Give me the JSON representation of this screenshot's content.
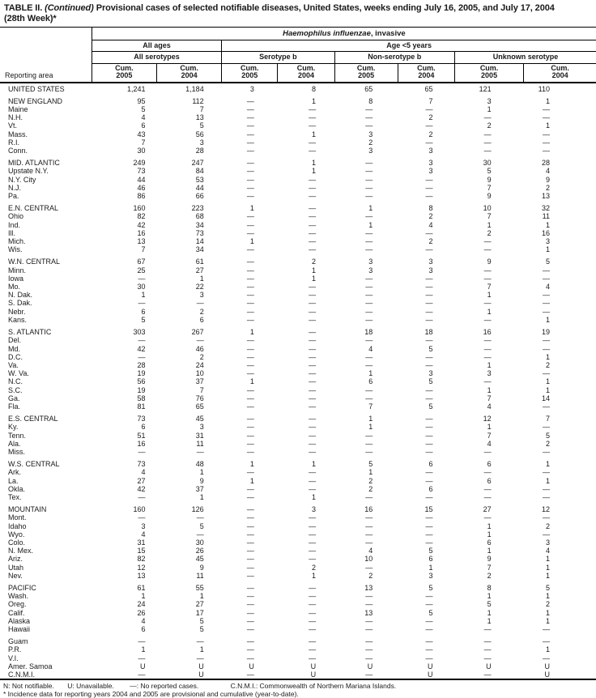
{
  "title": {
    "part1": "TABLE II. ",
    "part2": "(Continued) ",
    "part3": "Provisional cases of selected notifiable diseases, United States, weeks ending July 16, 2005, and July 17, 2004",
    "part4": "(28th Week)*"
  },
  "header": {
    "reporting_area": "Reporting area",
    "disease_italic": "Haemophilus influenzae",
    "disease_rest": ", invasive",
    "all_ages": "All ages",
    "age_lt5": "Age <5 years",
    "all_serotypes": "All serotypes",
    "serotype_b": "Serotype b",
    "non_serotype_b": "Non-serotype b",
    "unknown_serotype": "Unknown serotype",
    "cum": "Cum.",
    "y2005": "2005",
    "y2004": "2004"
  },
  "table": {
    "rows": [
      {
        "area": "UNITED STATES",
        "gap": false,
        "values": [
          "1,241",
          "1,184",
          "3",
          "8",
          "65",
          "65",
          "121",
          "110"
        ]
      },
      {
        "area": "NEW ENGLAND",
        "gap": true,
        "values": [
          "95",
          "112",
          "—",
          "1",
          "8",
          "7",
          "3",
          "1"
        ]
      },
      {
        "area": "Maine",
        "gap": false,
        "values": [
          "5",
          "7",
          "—",
          "—",
          "—",
          "—",
          "1",
          "—"
        ]
      },
      {
        "area": "N.H.",
        "gap": false,
        "values": [
          "4",
          "13",
          "—",
          "—",
          "—",
          "2",
          "—",
          "—"
        ]
      },
      {
        "area": "Vt.",
        "gap": false,
        "values": [
          "6",
          "5",
          "—",
          "—",
          "—",
          "—",
          "2",
          "1"
        ]
      },
      {
        "area": "Mass.",
        "gap": false,
        "values": [
          "43",
          "56",
          "—",
          "1",
          "3",
          "2",
          "—",
          "—"
        ]
      },
      {
        "area": "R.I.",
        "gap": false,
        "values": [
          "7",
          "3",
          "—",
          "—",
          "2",
          "—",
          "—",
          "—"
        ]
      },
      {
        "area": "Conn.",
        "gap": false,
        "values": [
          "30",
          "28",
          "—",
          "—",
          "3",
          "3",
          "—",
          "—"
        ]
      },
      {
        "area": "MID. ATLANTIC",
        "gap": true,
        "values": [
          "249",
          "247",
          "—",
          "1",
          "—",
          "3",
          "30",
          "28"
        ]
      },
      {
        "area": "Upstate N.Y.",
        "gap": false,
        "values": [
          "73",
          "84",
          "—",
          "1",
          "—",
          "3",
          "5",
          "4"
        ]
      },
      {
        "area": "N.Y. City",
        "gap": false,
        "values": [
          "44",
          "53",
          "—",
          "—",
          "—",
          "—",
          "9",
          "9"
        ]
      },
      {
        "area": "N.J.",
        "gap": false,
        "values": [
          "46",
          "44",
          "—",
          "—",
          "—",
          "—",
          "7",
          "2"
        ]
      },
      {
        "area": "Pa.",
        "gap": false,
        "values": [
          "86",
          "66",
          "—",
          "—",
          "—",
          "—",
          "9",
          "13"
        ]
      },
      {
        "area": "E.N. CENTRAL",
        "gap": true,
        "values": [
          "160",
          "223",
          "1",
          "—",
          "1",
          "8",
          "10",
          "32"
        ]
      },
      {
        "area": "Ohio",
        "gap": false,
        "values": [
          "82",
          "68",
          "—",
          "—",
          "—",
          "2",
          "7",
          "11"
        ]
      },
      {
        "area": "Ind.",
        "gap": false,
        "values": [
          "42",
          "34",
          "—",
          "—",
          "1",
          "4",
          "1",
          "1"
        ]
      },
      {
        "area": "Ill.",
        "gap": false,
        "values": [
          "16",
          "73",
          "—",
          "—",
          "—",
          "—",
          "2",
          "16"
        ]
      },
      {
        "area": "Mich.",
        "gap": false,
        "values": [
          "13",
          "14",
          "1",
          "—",
          "—",
          "2",
          "—",
          "3"
        ]
      },
      {
        "area": "Wis.",
        "gap": false,
        "values": [
          "7",
          "34",
          "—",
          "—",
          "—",
          "—",
          "—",
          "1"
        ]
      },
      {
        "area": "W.N. CENTRAL",
        "gap": true,
        "values": [
          "67",
          "61",
          "—",
          "2",
          "3",
          "3",
          "9",
          "5"
        ]
      },
      {
        "area": "Minn.",
        "gap": false,
        "values": [
          "25",
          "27",
          "—",
          "1",
          "3",
          "3",
          "—",
          "—"
        ]
      },
      {
        "area": "Iowa",
        "gap": false,
        "values": [
          "—",
          "1",
          "—",
          "1",
          "—",
          "—",
          "—",
          "—"
        ]
      },
      {
        "area": "Mo.",
        "gap": false,
        "values": [
          "30",
          "22",
          "—",
          "—",
          "—",
          "—",
          "7",
          "4"
        ]
      },
      {
        "area": "N. Dak.",
        "gap": false,
        "values": [
          "1",
          "3",
          "—",
          "—",
          "—",
          "—",
          "1",
          "—"
        ]
      },
      {
        "area": "S. Dak.",
        "gap": false,
        "values": [
          "—",
          "—",
          "—",
          "—",
          "—",
          "—",
          "—",
          "—"
        ]
      },
      {
        "area": "Nebr.",
        "gap": false,
        "values": [
          "6",
          "2",
          "—",
          "—",
          "—",
          "—",
          "1",
          "—"
        ]
      },
      {
        "area": "Kans.",
        "gap": false,
        "values": [
          "5",
          "6",
          "—",
          "—",
          "—",
          "—",
          "—",
          "1"
        ]
      },
      {
        "area": "S. ATLANTIC",
        "gap": true,
        "values": [
          "303",
          "267",
          "1",
          "—",
          "18",
          "18",
          "16",
          "19"
        ]
      },
      {
        "area": "Del.",
        "gap": false,
        "values": [
          "—",
          "—",
          "—",
          "—",
          "—",
          "—",
          "—",
          "—"
        ]
      },
      {
        "area": "Md.",
        "gap": false,
        "values": [
          "42",
          "46",
          "—",
          "—",
          "4",
          "5",
          "—",
          "—"
        ]
      },
      {
        "area": "D.C.",
        "gap": false,
        "values": [
          "—",
          "2",
          "—",
          "—",
          "—",
          "—",
          "—",
          "1"
        ]
      },
      {
        "area": "Va.",
        "gap": false,
        "values": [
          "28",
          "24",
          "—",
          "—",
          "—",
          "—",
          "1",
          "2"
        ]
      },
      {
        "area": "W. Va.",
        "gap": false,
        "values": [
          "19",
          "10",
          "—",
          "—",
          "1",
          "3",
          "3",
          "—"
        ]
      },
      {
        "area": "N.C.",
        "gap": false,
        "values": [
          "56",
          "37",
          "1",
          "—",
          "6",
          "5",
          "—",
          "1"
        ]
      },
      {
        "area": "S.C.",
        "gap": false,
        "values": [
          "19",
          "7",
          "—",
          "—",
          "—",
          "—",
          "1",
          "1"
        ]
      },
      {
        "area": "Ga.",
        "gap": false,
        "values": [
          "58",
          "76",
          "—",
          "—",
          "—",
          "—",
          "7",
          "14"
        ]
      },
      {
        "area": "Fla.",
        "gap": false,
        "values": [
          "81",
          "65",
          "—",
          "—",
          "7",
          "5",
          "4",
          "—"
        ]
      },
      {
        "area": "E.S. CENTRAL",
        "gap": true,
        "values": [
          "73",
          "45",
          "—",
          "—",
          "1",
          "—",
          "12",
          "7"
        ]
      },
      {
        "area": "Ky.",
        "gap": false,
        "values": [
          "6",
          "3",
          "—",
          "—",
          "1",
          "—",
          "1",
          "—"
        ]
      },
      {
        "area": "Tenn.",
        "gap": false,
        "values": [
          "51",
          "31",
          "—",
          "—",
          "—",
          "—",
          "7",
          "5"
        ]
      },
      {
        "area": "Ala.",
        "gap": false,
        "values": [
          "16",
          "11",
          "—",
          "—",
          "—",
          "—",
          "4",
          "2"
        ]
      },
      {
        "area": "Miss.",
        "gap": false,
        "values": [
          "—",
          "—",
          "—",
          "—",
          "—",
          "—",
          "—",
          "—"
        ]
      },
      {
        "area": "W.S. CENTRAL",
        "gap": true,
        "values": [
          "73",
          "48",
          "1",
          "1",
          "5",
          "6",
          "6",
          "1"
        ]
      },
      {
        "area": "Ark.",
        "gap": false,
        "values": [
          "4",
          "1",
          "—",
          "—",
          "1",
          "—",
          "—",
          "—"
        ]
      },
      {
        "area": "La.",
        "gap": false,
        "values": [
          "27",
          "9",
          "1",
          "—",
          "2",
          "—",
          "6",
          "1"
        ]
      },
      {
        "area": "Okla.",
        "gap": false,
        "values": [
          "42",
          "37",
          "—",
          "—",
          "2",
          "6",
          "—",
          "—"
        ]
      },
      {
        "area": "Tex.",
        "gap": false,
        "values": [
          "—",
          "1",
          "—",
          "1",
          "—",
          "—",
          "—",
          "—"
        ]
      },
      {
        "area": "MOUNTAIN",
        "gap": true,
        "values": [
          "160",
          "126",
          "—",
          "3",
          "16",
          "15",
          "27",
          "12"
        ]
      },
      {
        "area": "Mont.",
        "gap": false,
        "values": [
          "—",
          "—",
          "—",
          "—",
          "—",
          "—",
          "—",
          "—"
        ]
      },
      {
        "area": "Idaho",
        "gap": false,
        "values": [
          "3",
          "5",
          "—",
          "—",
          "—",
          "—",
          "1",
          "2"
        ]
      },
      {
        "area": "Wyo.",
        "gap": false,
        "values": [
          "4",
          "—",
          "—",
          "—",
          "—",
          "—",
          "1",
          "—"
        ]
      },
      {
        "area": "Colo.",
        "gap": false,
        "values": [
          "31",
          "30",
          "—",
          "—",
          "—",
          "—",
          "6",
          "3"
        ]
      },
      {
        "area": "N. Mex.",
        "gap": false,
        "values": [
          "15",
          "26",
          "—",
          "—",
          "4",
          "5",
          "1",
          "4"
        ]
      },
      {
        "area": "Ariz.",
        "gap": false,
        "values": [
          "82",
          "45",
          "—",
          "—",
          "10",
          "6",
          "9",
          "1"
        ]
      },
      {
        "area": "Utah",
        "gap": false,
        "values": [
          "12",
          "9",
          "—",
          "2",
          "—",
          "1",
          "7",
          "1"
        ]
      },
      {
        "area": "Nev.",
        "gap": false,
        "values": [
          "13",
          "11",
          "—",
          "1",
          "2",
          "3",
          "2",
          "1"
        ]
      },
      {
        "area": "PACIFIC",
        "gap": true,
        "values": [
          "61",
          "55",
          "—",
          "—",
          "13",
          "5",
          "8",
          "5"
        ]
      },
      {
        "area": "Wash.",
        "gap": false,
        "values": [
          "1",
          "1",
          "—",
          "—",
          "—",
          "—",
          "1",
          "1"
        ]
      },
      {
        "area": "Oreg.",
        "gap": false,
        "values": [
          "24",
          "27",
          "—",
          "—",
          "—",
          "—",
          "5",
          "2"
        ]
      },
      {
        "area": "Calif.",
        "gap": false,
        "values": [
          "26",
          "17",
          "—",
          "—",
          "13",
          "5",
          "1",
          "1"
        ]
      },
      {
        "area": "Alaska",
        "gap": false,
        "values": [
          "4",
          "5",
          "—",
          "—",
          "—",
          "—",
          "1",
          "1"
        ]
      },
      {
        "area": "Hawaii",
        "gap": false,
        "values": [
          "6",
          "5",
          "—",
          "—",
          "—",
          "—",
          "—",
          "—"
        ]
      },
      {
        "area": "Guam",
        "gap": true,
        "values": [
          "—",
          "—",
          "—",
          "—",
          "—",
          "—",
          "—",
          "—"
        ]
      },
      {
        "area": "P.R.",
        "gap": false,
        "values": [
          "1",
          "1",
          "—",
          "—",
          "—",
          "—",
          "—",
          "1"
        ]
      },
      {
        "area": "V.I.",
        "gap": false,
        "values": [
          "—",
          "—",
          "—",
          "—",
          "—",
          "—",
          "—",
          "—"
        ]
      },
      {
        "area": "Amer. Samoa",
        "gap": false,
        "values": [
          "U",
          "U",
          "U",
          "U",
          "U",
          "U",
          "U",
          "U"
        ]
      },
      {
        "area": "C.N.M.I.",
        "gap": false,
        "values": [
          "—",
          "U",
          "—",
          "U",
          "—",
          "U",
          "—",
          "U"
        ]
      }
    ]
  },
  "footnotes": {
    "n": "N: Not notifiable.",
    "u": "U: Unavailable.",
    "dash": "—: No reported cases.",
    "cnmi": "C.N.M.I.: Commonwealth of Northern Mariana Islands.",
    "note": "* Incidence data for reporting years 2004 and 2005 are provisional and cumulative (year-to-date)."
  }
}
